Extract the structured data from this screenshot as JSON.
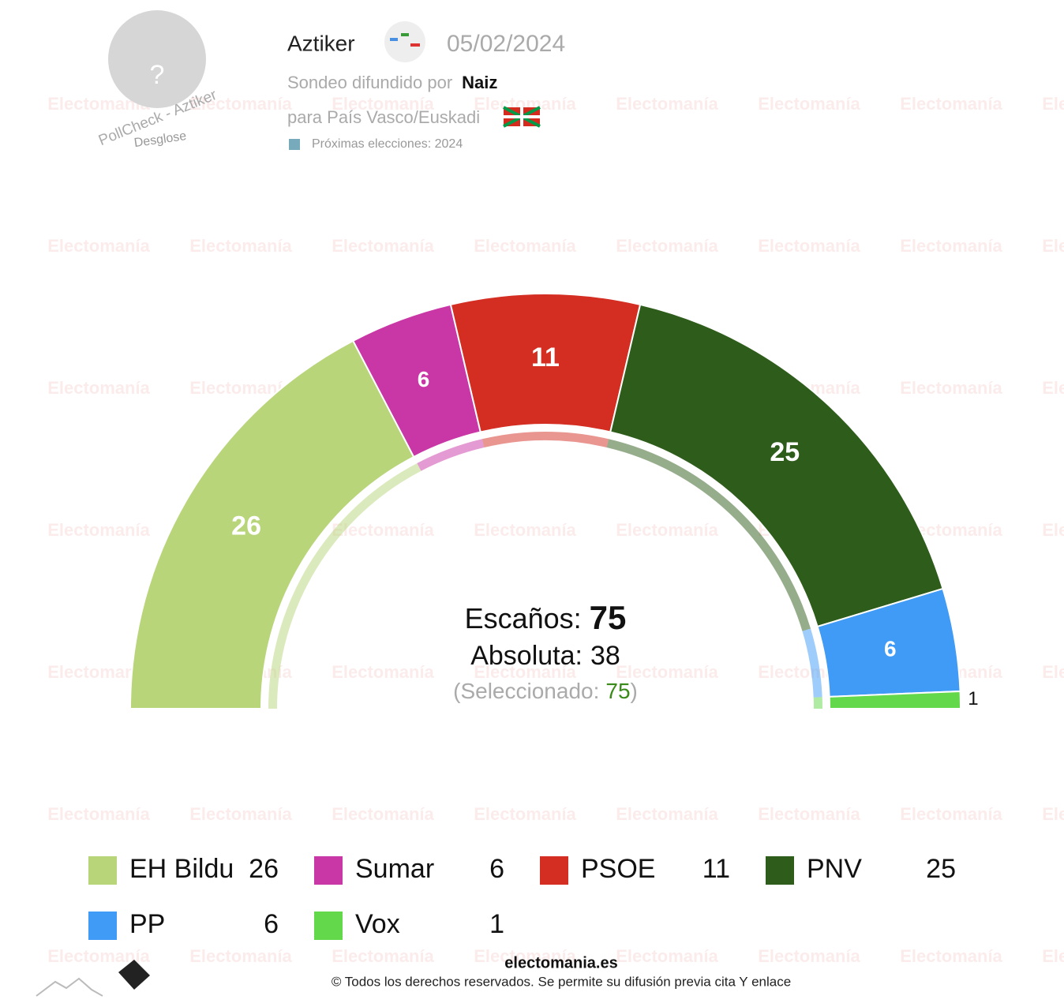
{
  "header": {
    "avatar": "?",
    "avatar_caption": "PollCheck - Aztiker",
    "avatar_link": "Desglose",
    "pollster": "Aztiker",
    "date": "05/02/2024",
    "sponsor_prefix": "Sondeo difundido por",
    "sponsor": "Naiz",
    "region": "para País Vasco/Euskadi",
    "next_election": "Próximas elecciones: 2024"
  },
  "watermark": "Electomanía",
  "chart_data": {
    "type": "parliament",
    "seats_label": "Escaños:",
    "seats": 75,
    "majority_label": "Absoluta:",
    "majority": 38,
    "selected_label": "(Seleccionado:",
    "selected": 75,
    "selected_close": ")",
    "parties": [
      {
        "name": "EH Bildu",
        "value": 26,
        "color": "#b8d57a"
      },
      {
        "name": "Sumar",
        "value": 6,
        "color": "#c936a5"
      },
      {
        "name": "PSOE",
        "value": 11,
        "color": "#d42d22"
      },
      {
        "name": "PNV",
        "value": 25,
        "color": "#2e5c1a"
      },
      {
        "name": "PP",
        "value": 6,
        "color": "#409bf7"
      },
      {
        "name": "Vox",
        "value": 1,
        "color": "#62d84a"
      }
    ]
  },
  "footer": {
    "site": "electomania.es",
    "rights": "© Todos los derechos reservados. Se permite su difusión previa cita Y enlace"
  }
}
